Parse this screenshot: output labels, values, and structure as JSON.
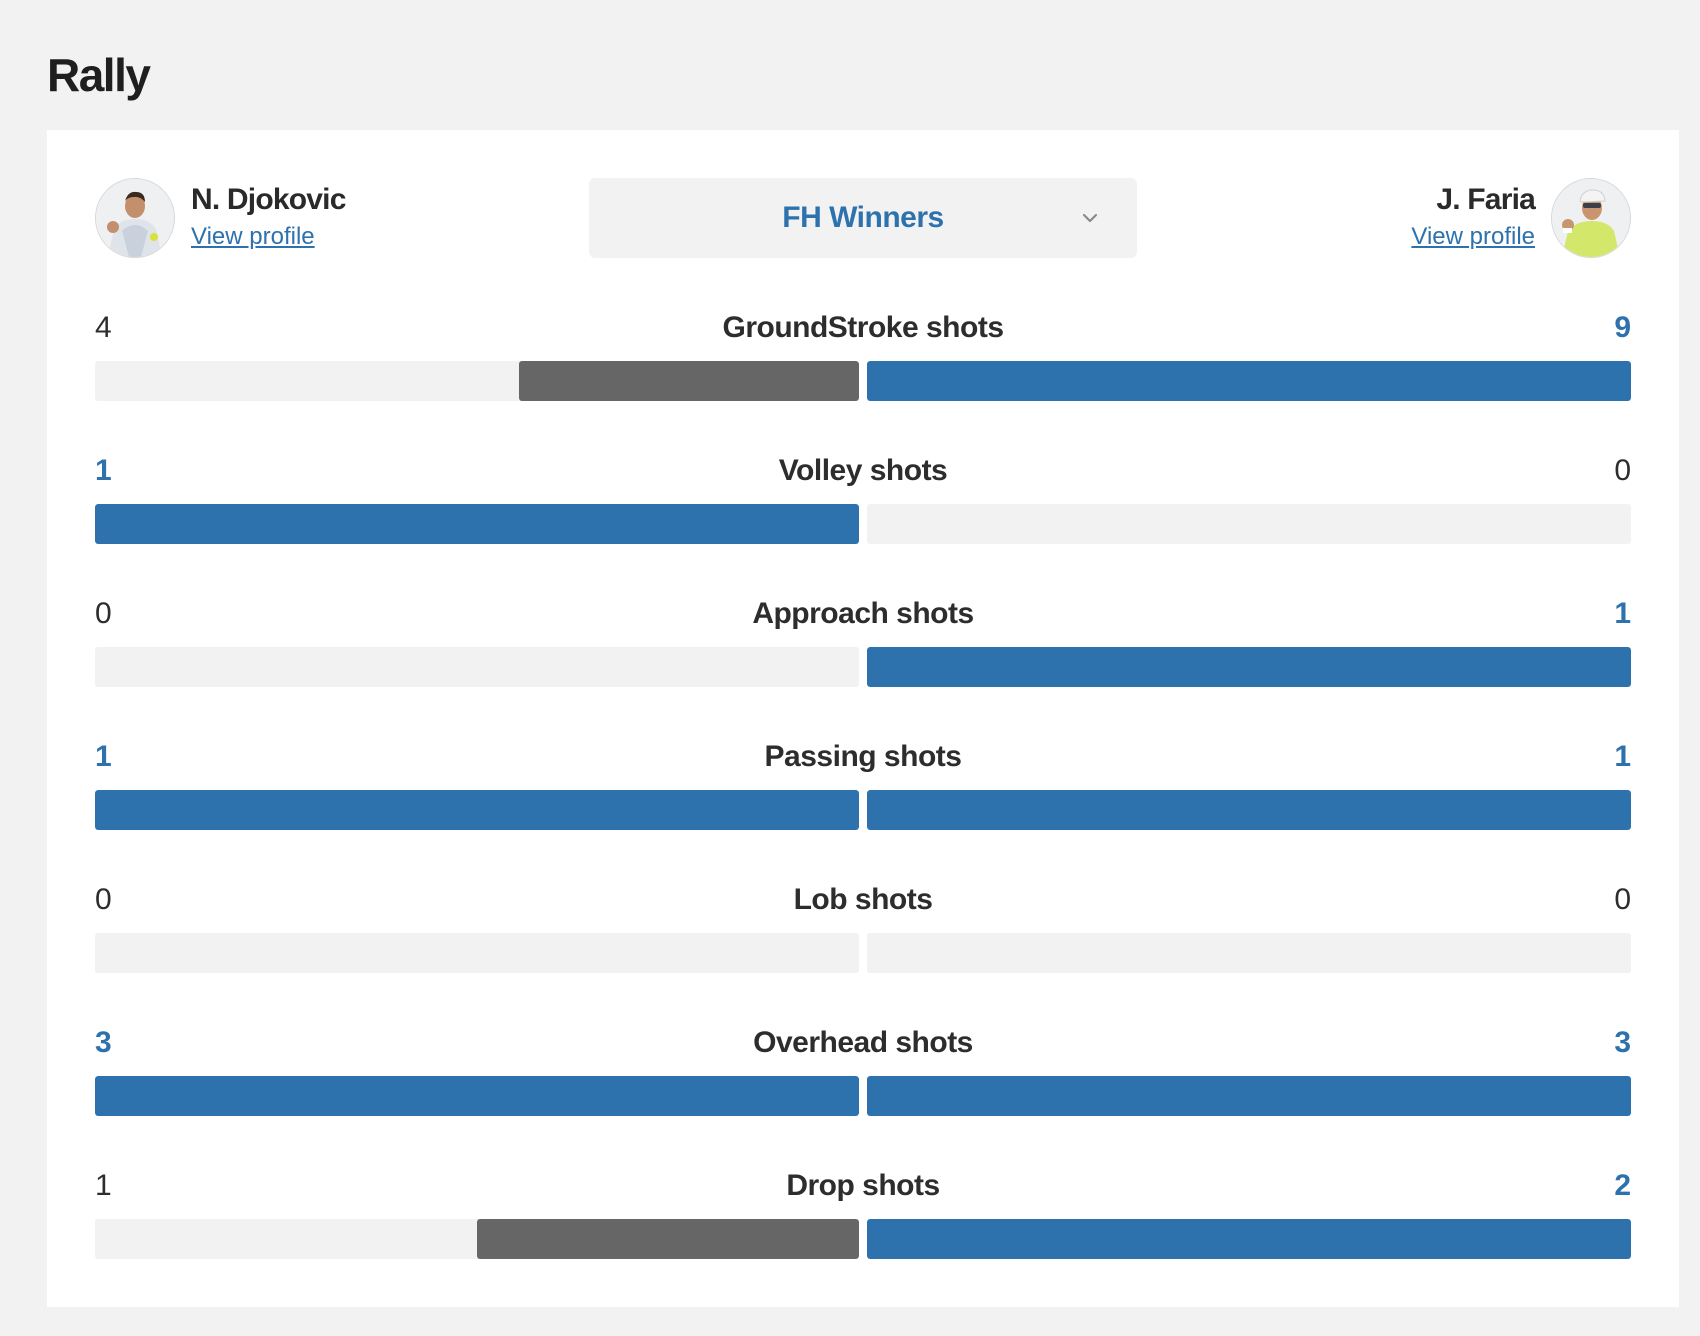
{
  "section_title": "Rally",
  "players": {
    "left": {
      "name": "N. Djokovic",
      "profile_link": "View profile",
      "avatar_icon": "player-photo"
    },
    "right": {
      "name": "J. Faria",
      "profile_link": "View profile",
      "avatar_icon": "player-photo"
    }
  },
  "stat_select": {
    "selected": "FH Winners",
    "icon": "chevron-down-icon"
  },
  "colors": {
    "leader": "#2d72ad",
    "trailer": "#666666",
    "track": "#f2f2f2"
  },
  "rows": [
    {
      "label": "GroundStroke shots",
      "left": "4",
      "right": "9"
    },
    {
      "label": "Volley shots",
      "left": "1",
      "right": "0"
    },
    {
      "label": "Approach shots",
      "left": "0",
      "right": "1"
    },
    {
      "label": "Passing shots",
      "left": "1",
      "right": "1"
    },
    {
      "label": "Lob shots",
      "left": "0",
      "right": "0"
    },
    {
      "label": "Overhead shots",
      "left": "3",
      "right": "3"
    },
    {
      "label": "Drop shots",
      "left": "1",
      "right": "2"
    }
  ]
}
